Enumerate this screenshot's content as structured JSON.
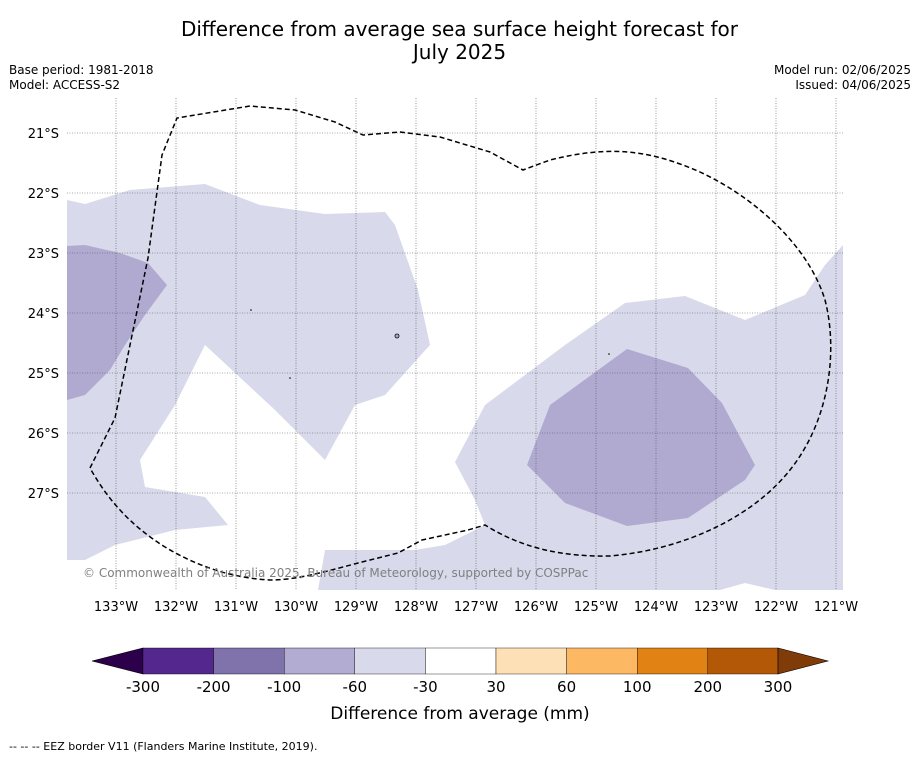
{
  "title": {
    "line1": "Difference from average sea surface height forecast for",
    "line2": "July 2025"
  },
  "meta": {
    "base_period": "Base period: 1981-2018",
    "model": "Model: ACCESS-S2",
    "model_run": "Model run: 02/06/2025",
    "issued": "Issued: 04/06/2025"
  },
  "copyright": "© Commonwealth of Australia 2025, Bureau of Meteorology, supported by COSPPac",
  "map": {
    "lat_ticks": [
      "21°S",
      "22°S",
      "23°S",
      "24°S",
      "25°S",
      "26°S",
      "27°S"
    ],
    "lon_ticks": [
      "133°W",
      "132°W",
      "131°W",
      "130°W",
      "129°W",
      "128°W",
      "127°W",
      "126°W",
      "125°W",
      "124°W",
      "123°W",
      "122°W",
      "121°W"
    ],
    "grid": true,
    "eez_border_style": "dashed"
  },
  "colorbar": {
    "label": "Difference from average (mm)",
    "ticks": [
      "-300",
      "-200",
      "-100",
      "-60",
      "-30",
      "30",
      "60",
      "100",
      "200",
      "300"
    ],
    "colors": [
      "#54278f",
      "#8073ac",
      "#b2abd2",
      "#d8daeb",
      "#ffffff",
      "#fee0b6",
      "#fdb863",
      "#e08214",
      "#b35806"
    ],
    "extend_low_color": "#2d004b",
    "extend_high_color": "#7f3b08"
  },
  "footnote": "--  --  -- EEZ border V11 (Flanders Marine Institute, 2019)."
}
